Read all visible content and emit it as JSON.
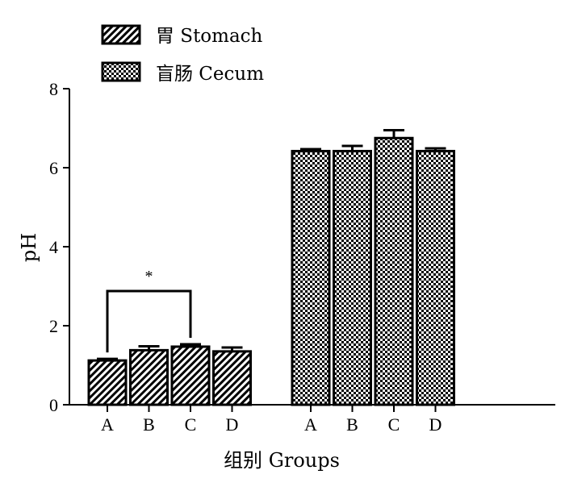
{
  "chart_data": {
    "type": "bar",
    "xlabel": "组别 Groups",
    "ylabel": "pH",
    "ylim": [
      0,
      8
    ],
    "yticks": [
      "0",
      "2",
      "4",
      "6",
      "8"
    ],
    "categories": [
      "A",
      "B",
      "C",
      "D"
    ],
    "series": [
      {
        "name": "胃 Stomach",
        "values": [
          1.12,
          1.38,
          1.47,
          1.35
        ],
        "errors": [
          0.04,
          0.1,
          0.06,
          0.1
        ],
        "pattern": "stripes"
      },
      {
        "name": "盲肠 Cecum",
        "values": [
          6.42,
          6.42,
          6.75,
          6.42
        ],
        "errors": [
          0.05,
          0.13,
          0.2,
          0.07
        ],
        "pattern": "checker"
      }
    ],
    "annotations": [
      {
        "text": "*",
        "from_category": "A",
        "to_category": "C",
        "series": "胃 Stomach"
      }
    ],
    "grid": false,
    "legend_position": "top-left"
  }
}
